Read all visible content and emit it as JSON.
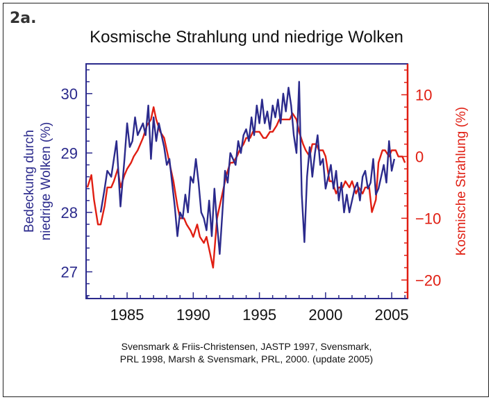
{
  "figure_label": "2a.",
  "title": "Kosmische Strahlung und niedrige Wolken",
  "credit_line1": "Svensmark & Friis-Christensen, JASTP 1997, Svensmark,",
  "credit_line2": "PRL 1998, Marsh & Svensmark, PRL, 2000. (update 2005)",
  "chart_data": {
    "type": "line",
    "title": "Kosmische Strahlung und niedrige Wolken",
    "xlim": [
      1981.9,
      2006.2
    ],
    "xticks": [
      1985,
      1990,
      1995,
      2000,
      2005
    ],
    "ylabel_left": "Bedeckung durch niedrige Wolken (%)",
    "ylim_left": [
      26.55,
      30.5
    ],
    "yticks_left": [
      27,
      28,
      29,
      30
    ],
    "ylabel_right": "Kosmische Strahlung (%)",
    "ylim_right": [
      -23,
      15
    ],
    "yticks_right": [
      -20,
      -10,
      0,
      10
    ],
    "colors": {
      "clouds": "#2b2a8c",
      "cosmic": "#e01e12"
    },
    "series": [
      {
        "axis": "left",
        "x": [
          1983.0,
          1983.3,
          1983.5,
          1983.8,
          1984.0,
          1984.2,
          1984.5,
          1984.8,
          1985.0,
          1985.2,
          1985.4,
          1985.6,
          1985.8,
          1986.0,
          1986.2,
          1986.4,
          1986.6,
          1986.8,
          1987.0,
          1987.2,
          1987.4,
          1987.6,
          1987.8,
          1988.0,
          1988.2,
          1988.4,
          1988.6,
          1988.8,
          1989.0,
          1989.2,
          1989.4,
          1989.6,
          1989.8,
          1990.0,
          1990.2,
          1990.4,
          1990.6,
          1990.8,
          1991.0,
          1991.2,
          1991.4,
          1991.6,
          1991.8,
          1992.0,
          1992.2,
          1992.4,
          1992.6,
          1992.8,
          1993.0,
          1993.2,
          1993.4,
          1993.6,
          1993.8,
          1994.0,
          1994.2,
          1994.4,
          1994.6,
          1994.8,
          1995.0,
          1995.2,
          1995.4,
          1995.6,
          1995.8,
          1996.0,
          1996.2,
          1996.4,
          1996.6,
          1996.8,
          1997.0,
          1997.2,
          1997.4,
          1997.6,
          1997.8,
          1998.0,
          1998.2,
          1998.4,
          1998.6,
          1998.8,
          1999.0,
          1999.2,
          1999.4,
          1999.6,
          1999.8,
          2000.0,
          2000.2,
          2000.4,
          2000.6,
          2000.8,
          2001.0,
          2001.2,
          2001.4,
          2001.6,
          2001.8,
          2002.0,
          2002.2,
          2002.4,
          2002.6,
          2002.8,
          2003.0,
          2003.2,
          2003.4,
          2003.6,
          2003.8,
          2004.0,
          2004.2,
          2004.4,
          2004.6,
          2004.8,
          2005.0,
          2005.2
        ],
        "values": [
          28.0,
          28.4,
          28.7,
          28.6,
          28.9,
          29.2,
          28.1,
          28.9,
          29.5,
          29.1,
          29.2,
          29.6,
          29.3,
          29.4,
          29.5,
          29.3,
          29.8,
          28.9,
          29.6,
          29.2,
          29.5,
          29.3,
          29.1,
          28.8,
          28.9,
          28.5,
          28.1,
          27.6,
          28.0,
          27.9,
          28.3,
          28.0,
          28.6,
          28.5,
          28.9,
          28.5,
          28.0,
          27.9,
          27.7,
          28.2,
          27.6,
          28.4,
          27.8,
          27.3,
          28.0,
          28.7,
          28.5,
          29.0,
          28.9,
          28.8,
          29.2,
          29.0,
          29.3,
          29.4,
          29.2,
          29.6,
          29.3,
          29.8,
          29.5,
          29.9,
          29.5,
          29.7,
          29.4,
          29.8,
          29.6,
          29.9,
          29.5,
          30.0,
          29.7,
          30.1,
          29.8,
          29.3,
          29.0,
          30.2,
          28.3,
          27.5,
          28.6,
          29.1,
          28.6,
          29.0,
          29.3,
          28.8,
          28.9,
          28.4,
          28.6,
          28.8,
          28.4,
          28.7,
          28.2,
          28.5,
          28.0,
          28.3,
          28.0,
          28.2,
          28.4,
          28.5,
          28.2,
          28.6,
          28.7,
          28.4,
          28.5,
          28.9,
          28.3,
          28.4,
          28.6,
          28.8,
          28.5,
          29.2,
          28.7,
          28.9
        ],
        "name": ""
      },
      {
        "axis": "right",
        "x": [
          1982.0,
          1982.3,
          1982.5,
          1982.8,
          1983.0,
          1983.3,
          1983.5,
          1983.8,
          1984.0,
          1984.3,
          1984.5,
          1984.8,
          1985.0,
          1985.3,
          1985.5,
          1985.8,
          1986.0,
          1986.2,
          1986.5,
          1986.8,
          1987.0,
          1987.2,
          1987.5,
          1987.8,
          1988.0,
          1988.3,
          1988.5,
          1988.8,
          1989.0,
          1989.3,
          1989.5,
          1989.8,
          1990.0,
          1990.3,
          1990.5,
          1990.8,
          1991.0,
          1991.2,
          1991.5,
          1991.8,
          1992.0,
          1992.3,
          1992.5,
          1992.8,
          1993.0,
          1993.3,
          1993.5,
          1993.8,
          1994.0,
          1994.3,
          1994.5,
          1994.8,
          1995.0,
          1995.3,
          1995.5,
          1995.8,
          1996.0,
          1996.3,
          1996.5,
          1996.8,
          1997.0,
          1997.3,
          1997.5,
          1997.8,
          1998.0,
          1998.3,
          1998.5,
          1998.8,
          1999.0,
          1999.3,
          1999.5,
          1999.8,
          2000.0,
          2000.3,
          2000.5,
          2000.8,
          2001.0,
          2001.3,
          2001.5,
          2001.8,
          2002.0,
          2002.3,
          2002.5,
          2002.8,
          2003.0,
          2003.3,
          2003.5,
          2003.8,
          2004.0,
          2004.3,
          2004.5,
          2004.8,
          2005.0,
          2005.3,
          2005.5,
          2005.8,
          2006.0
        ],
        "values": [
          -5,
          -3,
          -7,
          -11,
          -11,
          -8,
          -5,
          -5,
          -4,
          -2,
          -5,
          -3,
          -2,
          -1,
          0,
          1,
          2,
          3,
          5,
          6,
          8,
          6,
          4,
          3,
          1,
          -2,
          -4,
          -8,
          -10,
          -10,
          -11,
          -12,
          -13,
          -11,
          -13,
          -14,
          -13,
          -15,
          -18,
          -10,
          -8,
          -5,
          -3,
          -1,
          -1,
          0,
          1,
          2,
          3,
          3,
          4,
          4,
          4,
          3,
          3,
          4,
          4,
          5,
          6,
          6,
          6,
          6,
          7,
          6,
          4,
          2,
          1,
          0,
          2,
          2,
          1,
          1,
          0,
          -4,
          -4,
          -6,
          -5,
          -5,
          -4,
          -5,
          -4,
          -6,
          -5,
          -6,
          -5,
          -5,
          -9,
          -7,
          -1,
          1,
          1,
          0,
          1,
          1,
          0,
          0,
          -1
        ]
      }
    ]
  }
}
